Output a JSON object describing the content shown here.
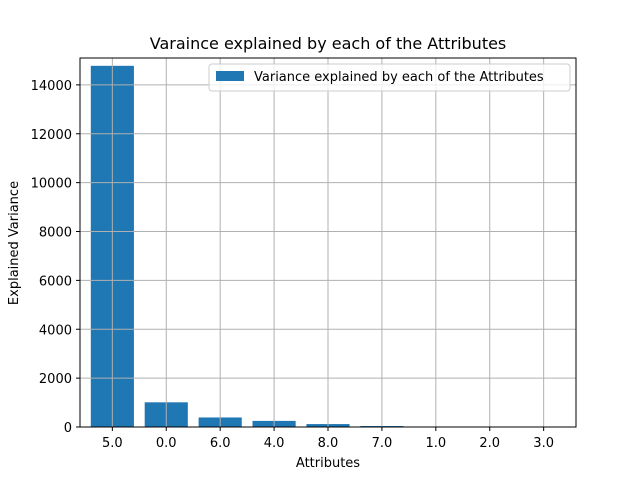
{
  "chart_data": {
    "type": "bar",
    "title": "Varaince explained by each of the Attributes",
    "xlabel": "Attributes",
    "ylabel": "Explained Variance",
    "categories": [
      "5.0",
      "0.0",
      "6.0",
      "4.0",
      "8.0",
      "7.0",
      "1.0",
      "2.0",
      "3.0"
    ],
    "series": [
      {
        "name": "Variance explained by each of the Attributes",
        "values": [
          14780,
          1010,
          390,
          250,
          120,
          40,
          12,
          6,
          3
        ],
        "color": "#1f77b4"
      }
    ],
    "ylim": [
      0,
      15100
    ],
    "yticks": [
      0,
      2000,
      4000,
      6000,
      8000,
      10000,
      12000,
      14000
    ],
    "grid": true,
    "legend_position": "top-right"
  }
}
